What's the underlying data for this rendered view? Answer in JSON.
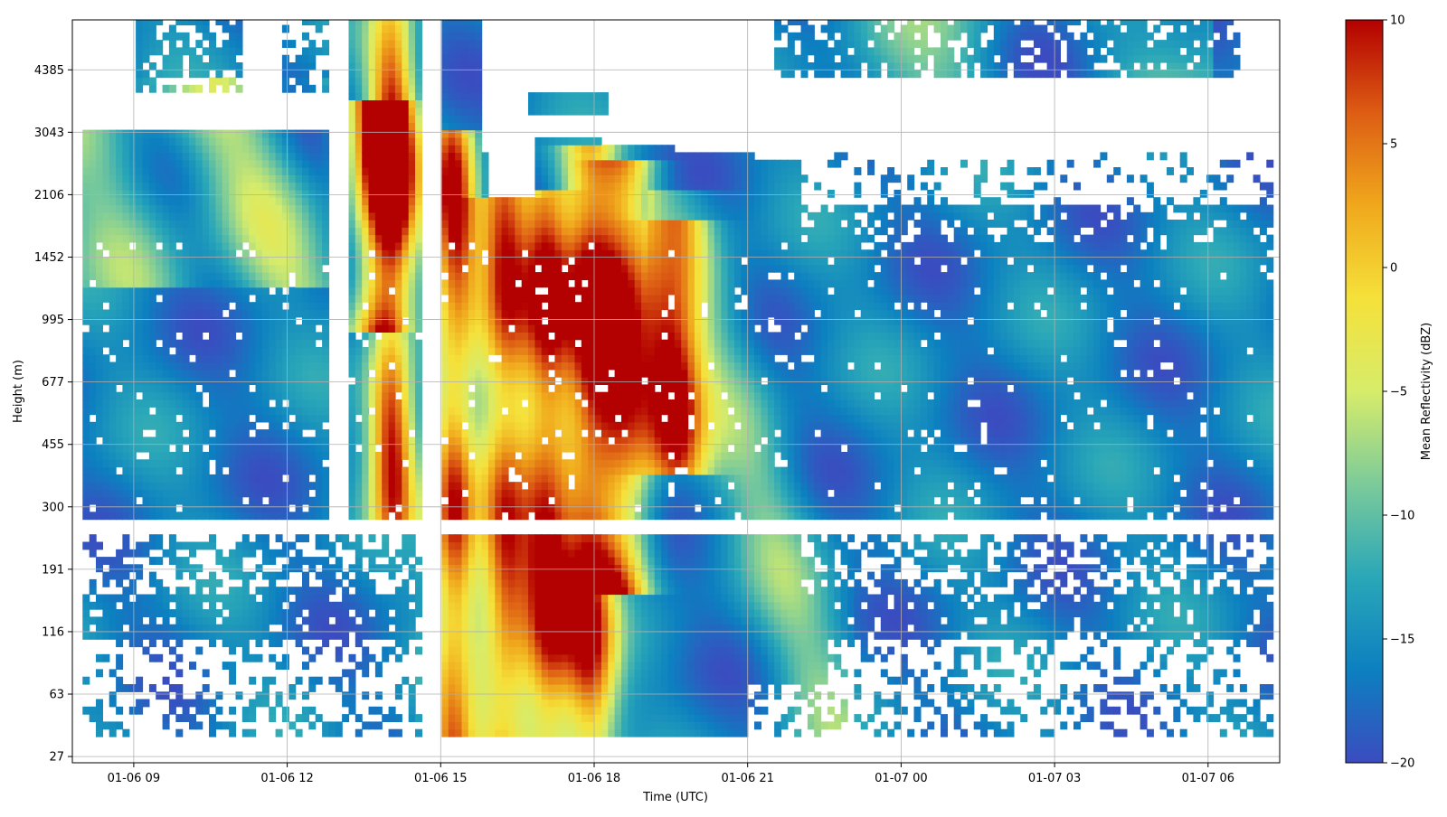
{
  "chart_data": {
    "type": "heatmap",
    "title": "",
    "xlabel": "Time (UTC)",
    "ylabel": "Height (m)",
    "x_ticks": [
      "01-06 09",
      "01-06 12",
      "01-06 15",
      "01-06 18",
      "01-06 21",
      "01-07 00",
      "01-07 03",
      "01-07 06"
    ],
    "x_tick_hours": [
      9,
      12,
      15,
      18,
      21,
      24,
      27,
      30
    ],
    "xlim_hours": [
      7.8,
      31.4
    ],
    "y_ticks": [
      "27",
      "63",
      "116",
      "191",
      "300",
      "455",
      "677",
      "995",
      "1452",
      "2106",
      "3043",
      "4385"
    ],
    "y_tick_values": [
      27,
      63,
      116,
      191,
      300,
      455,
      677,
      995,
      1452,
      2106,
      3043,
      4385
    ],
    "y_scale": "irregular (height levels evenly spaced)",
    "grid": true,
    "colorbar": {
      "label": "Mean Reflectivity (dBZ)",
      "ticks": [
        "10",
        "5",
        "0",
        "−5",
        "−10",
        "−15",
        "−20"
      ],
      "tick_values": [
        10,
        5,
        0,
        -5,
        -10,
        -15,
        -20
      ],
      "range": [
        -20,
        10
      ],
      "colormap": [
        "#3b4cc0",
        "#0c80c0",
        "#2aa7b8",
        "#7ccb9a",
        "#d7ec6a",
        "#f5e13a",
        "#f0a81c",
        "#dd5d14",
        "#b30000"
      ]
    },
    "description_values": {
      "background_reflectivity": -16,
      "precip_core_reflectivity": 7,
      "precip_core_period_hours": [
        15,
        20
      ]
    }
  }
}
